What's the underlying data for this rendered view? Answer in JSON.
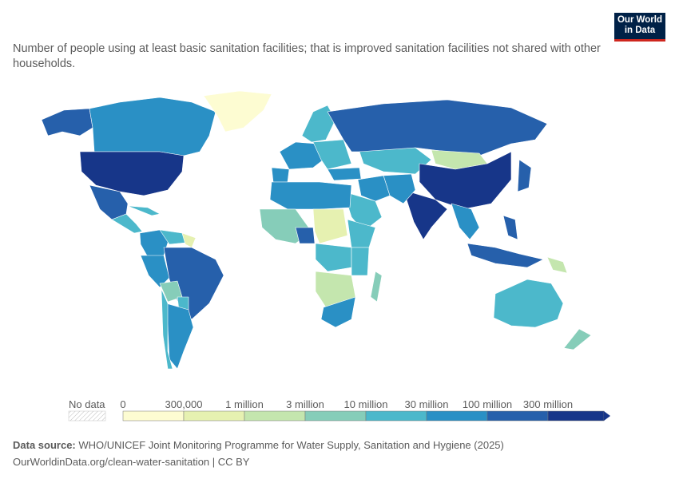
{
  "subtitle": "Number of people using at least basic sanitation facilities; that is improved sanitation facilities not shared with other households.",
  "logo": {
    "line1": "Our World",
    "line2": "in Data"
  },
  "legend": {
    "no_data": "No data",
    "ticks": [
      "0",
      "300,000",
      "1 million",
      "3 million",
      "10 million",
      "30 million",
      "100 million",
      "300 million"
    ],
    "colors": [
      "#fdfcd2",
      "#e6f1b1",
      "#c4e6ae",
      "#86cdb9",
      "#4cb8cb",
      "#2a90c5",
      "#2660ab",
      "#173689"
    ]
  },
  "footer": {
    "source_label": "Data source:",
    "source_text": " WHO/UNICEF Joint Monitoring Programme for Water Supply, Sanitation and Hygiene (2025)",
    "url_line": "OurWorldinData.org/clean-water-sanitation | CC BY"
  },
  "colors": {
    "ocean_land_border": "#ffffff",
    "brand": "#002147",
    "brand_accent": "#ce261e"
  }
}
